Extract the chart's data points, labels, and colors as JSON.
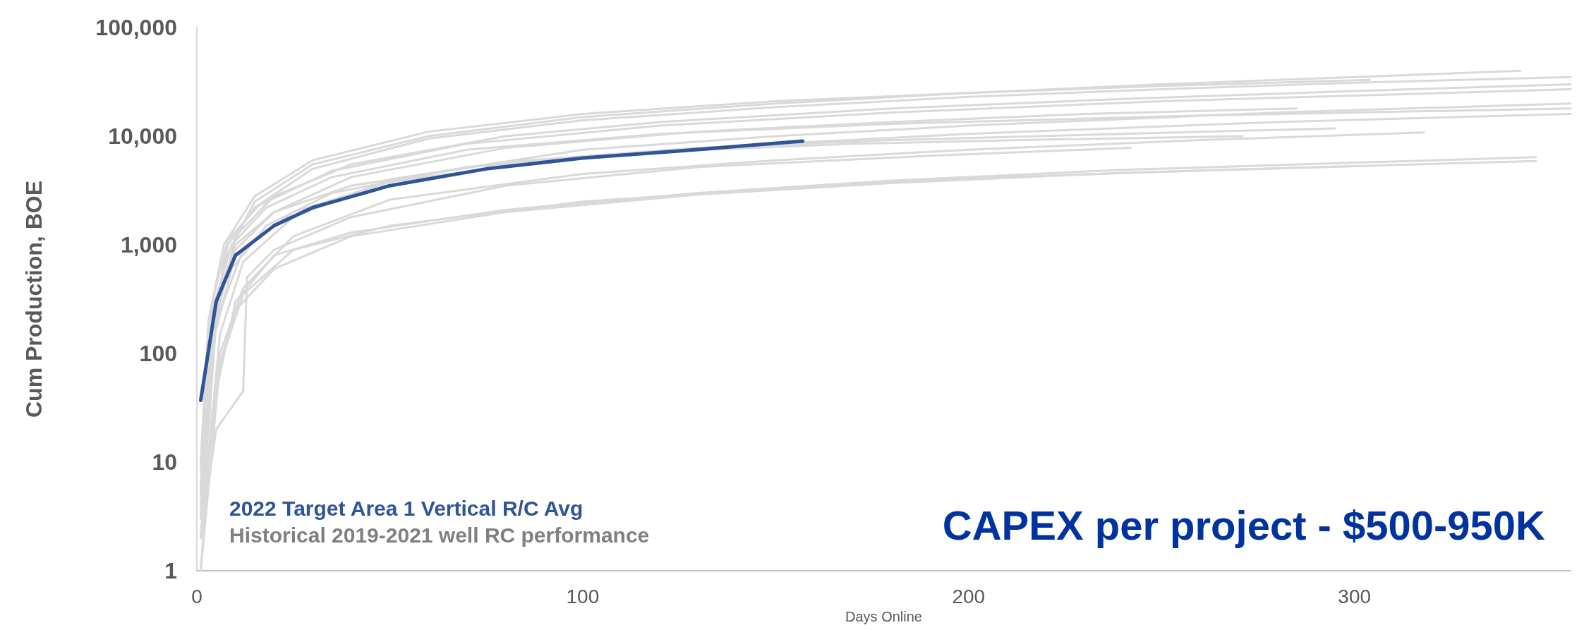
{
  "chart_data": {
    "type": "line",
    "xlabel": "Days Online",
    "ylabel": "Cum Production, BOE",
    "annotations": [
      "CAPEX per project - $500-950K"
    ],
    "xlim": [
      0,
      356
    ],
    "xticks": [
      0,
      100,
      200,
      300
    ],
    "ylim": [
      1,
      100000
    ],
    "yticks": [
      1,
      10,
      100,
      {
        "value": 1000,
        "label": "1,000"
      },
      {
        "value": 10000,
        "label": "10,000"
      },
      {
        "value": 100000,
        "label": "100,000"
      }
    ],
    "log": "y",
    "grid": false,
    "legend": "bottom left",
    "marker": "none",
    "line_style": "solid",
    "series": [
      {
        "color": "#d9d9d9",
        "x": [
          1,
          3,
          7,
          15,
          30,
          60,
          100,
          150,
          200,
          250,
          300,
          343
        ],
        "values": [
          5,
          60,
          700,
          2500,
          5500,
          10000,
          15000,
          20000,
          25000,
          30000,
          35000,
          40000
        ]
      },
      {
        "color": "#d9d9d9",
        "x": [
          1,
          4,
          8,
          15,
          30,
          60,
          100,
          150,
          200,
          250,
          300,
          356
        ],
        "values": [
          3,
          150,
          1000,
          2200,
          5000,
          9500,
          14000,
          18500,
          23000,
          27000,
          31000,
          35000
        ]
      },
      {
        "color": "#d9d9d9",
        "x": [
          1,
          5,
          10,
          20,
          40,
          80,
          120,
          180,
          240,
          300,
          356
        ],
        "values": [
          2,
          200,
          1200,
          2800,
          5500,
          10000,
          13500,
          18000,
          22000,
          26000,
          30000
        ]
      },
      {
        "color": "#d9d9d9",
        "x": [
          1,
          4,
          8,
          16,
          35,
          70,
          120,
          180,
          250,
          356
        ],
        "values": [
          8,
          300,
          1100,
          2300,
          4800,
          8500,
          12500,
          16500,
          21000,
          27000
        ]
      },
      {
        "color": "#d9d9d9",
        "x": [
          1,
          6,
          12,
          25,
          50,
          100,
          150,
          200,
          280,
          356
        ],
        "values": [
          2,
          150,
          700,
          1800,
          4000,
          7500,
          10000,
          12500,
          16500,
          20000
        ]
      },
      {
        "color": "#d9d9d9",
        "x": [
          1,
          5,
          12,
          25,
          50,
          100,
          150,
          200,
          280,
          356
        ],
        "values": [
          4,
          200,
          900,
          2000,
          3800,
          6500,
          8500,
          10500,
          13500,
          16000
        ]
      },
      {
        "color": "#d9d9d9",
        "x": [
          1,
          3,
          7,
          15,
          30,
          60,
          100,
          150,
          200,
          250,
          304
        ],
        "values": [
          10,
          200,
          1000,
          2800,
          6000,
          11000,
          16000,
          21000,
          25000,
          29000,
          33000
        ]
      },
      {
        "color": "#d9d9d9",
        "x": [
          1,
          5,
          10,
          20,
          40,
          80,
          130,
          180,
          230,
          285
        ],
        "values": [
          3,
          250,
          900,
          2000,
          4200,
          7800,
          11000,
          13500,
          16000,
          18000
        ]
      },
      {
        "color": "#d9d9d9",
        "x": [
          1,
          6,
          12,
          25,
          50,
          100,
          150,
          200,
          260,
          318
        ],
        "values": [
          2,
          100,
          400,
          1200,
          2600,
          4500,
          6000,
          7500,
          9200,
          10800
        ]
      },
      {
        "color": "#d9d9d9",
        "x": [
          1,
          5,
          10,
          20,
          40,
          80,
          130,
          180,
          240,
          295
        ],
        "values": [
          5,
          300,
          1000,
          2000,
          3500,
          5800,
          7800,
          9200,
          10500,
          11800
        ]
      },
      {
        "color": "#d9d9d9",
        "x": [
          1,
          4,
          9,
          18,
          35,
          70,
          120,
          170,
          220,
          271
        ],
        "values": [
          3,
          120,
          600,
          1500,
          3000,
          5200,
          7200,
          8500,
          9300,
          10000
        ]
      },
      {
        "color": "#d9d9d9",
        "x": [
          1,
          5,
          12,
          13,
          20,
          40,
          80,
          130,
          190,
          242
        ],
        "values": [
          2,
          20,
          45,
          500,
          900,
          1800,
          3500,
          5200,
          6600,
          7800
        ]
      },
      {
        "color": "#d9d9d9",
        "x": [
          1,
          4,
          10,
          20,
          40,
          80,
          130,
          180,
          240,
          300,
          347
        ],
        "values": [
          1,
          30,
          300,
          800,
          1300,
          2100,
          3000,
          3900,
          4900,
          5700,
          6400
        ]
      },
      {
        "color": "#d9d9d9",
        "x": [
          1,
          5,
          10,
          20,
          40,
          80,
          130,
          180,
          240,
          300,
          347
        ],
        "values": [
          2,
          60,
          250,
          600,
          1200,
          2000,
          2900,
          3700,
          4600,
          5300,
          5900
        ]
      },
      {
        "color": "#d9d9d9",
        "x": [
          1,
          6,
          12,
          25,
          50,
          100,
          150,
          200,
          250,
          300
        ],
        "values": [
          1,
          80,
          350,
          900,
          1500,
          2500,
          3300,
          4100,
          4700,
          5300
        ]
      },
      {
        "name": "Historical 2019-2021 well RC performance",
        "color": "#d9d9d9",
        "x": [
          1,
          4,
          9,
          18,
          35,
          70,
          120,
          180,
          260,
          356
        ],
        "values": [
          6,
          250,
          1000,
          2200,
          4200,
          7500,
          10500,
          13000,
          15500,
          18000
        ]
      },
      {
        "name": "2022 Target Area 1 Vertical R/C Avg",
        "color": "#2f5597",
        "x": [
          1,
          5,
          10,
          20,
          30,
          50,
          75,
          100,
          125,
          157
        ],
        "values": [
          37,
          300,
          800,
          1500,
          2200,
          3500,
          5000,
          6300,
          7300,
          9000
        ]
      }
    ]
  }
}
